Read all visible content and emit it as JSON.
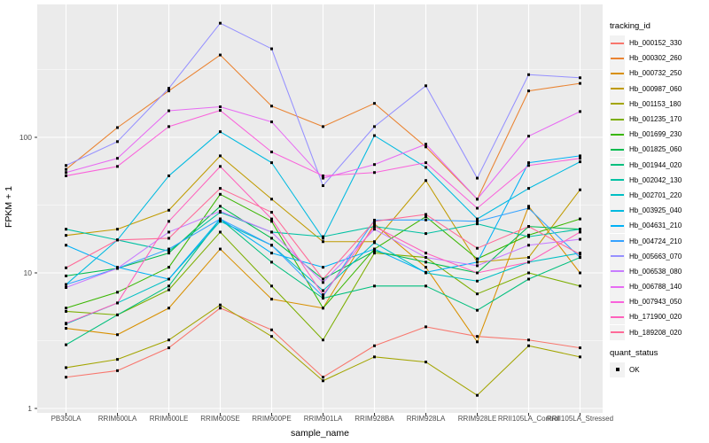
{
  "chart_data": {
    "type": "line",
    "title": "",
    "xlabel": "sample_name",
    "ylabel": "FPKM + 1",
    "y_scale": "log10",
    "ylim": [
      1,
      1000
    ],
    "y_ticks": [
      1,
      10,
      100
    ],
    "y_minor_ticks": [
      3.1623,
      31.623,
      316.23
    ],
    "grid": "on",
    "legend_position": "right",
    "legend_title": "tracking_id",
    "point_legend": {
      "title": "quant_status",
      "items": [
        {
          "label": "OK",
          "marker": "filled-black-square"
        }
      ]
    },
    "style": {
      "panel_bg": "#EBEBEB",
      "grid_color": "#FFFFFF",
      "point_color": "#000000",
      "tick_color": "#333333",
      "tick_label_color": "#4D4D4D"
    },
    "categories": [
      "PB350LA",
      "RRIM600LA",
      "RRIM600LE",
      "RRIM600SE",
      "RRIM600PE",
      "RRIM901LA",
      "RRIM928BA",
      "RRIM928LA",
      "RRIM928LE",
      "RRII105LA_Control",
      "RRII105LA_Stressed"
    ],
    "series": [
      {
        "name": "Hb_000152_330",
        "color": "#F8766D",
        "values": [
          1.7,
          1.9,
          2.8,
          5.5,
          3.8,
          1.7,
          2.9,
          4.0,
          3.4,
          3.2,
          2.8
        ]
      },
      {
        "name": "Hb_000302_260",
        "color": "#EA8331",
        "values": [
          58,
          118,
          220,
          405,
          170,
          120,
          178,
          85,
          35,
          220,
          250
        ]
      },
      {
        "name": "Hb_000732_250",
        "color": "#D89000",
        "values": [
          3.9,
          3.5,
          5.5,
          15,
          6.4,
          5.5,
          23,
          11,
          3.1,
          31,
          10
        ]
      },
      {
        "name": "Hb_000987_060",
        "color": "#C09B00",
        "values": [
          18.9,
          21,
          29,
          73,
          35,
          17,
          17,
          48,
          12,
          13,
          41
        ]
      },
      {
        "name": "Hb_001153_180",
        "color": "#A3A500",
        "values": [
          2.0,
          2.3,
          3.2,
          5.8,
          3.4,
          1.6,
          2.4,
          2.2,
          1.25,
          2.9,
          2.4
        ]
      },
      {
        "name": "Hb_001235_170",
        "color": "#7CAE00",
        "values": [
          5.2,
          4.9,
          7.5,
          20,
          8.0,
          3.2,
          14,
          13,
          7.0,
          10,
          8.0
        ]
      },
      {
        "name": "Hb_001699_230",
        "color": "#39B600",
        "values": [
          5.5,
          7.2,
          11,
          38,
          24,
          5.5,
          15,
          26,
          12.7,
          19,
          25
        ]
      },
      {
        "name": "Hb_001825_060",
        "color": "#00BB4E",
        "values": [
          9.5,
          10.8,
          14,
          31,
          18,
          9.0,
          14.5,
          12,
          10,
          22,
          21
        ]
      },
      {
        "name": "Hb_001944_020",
        "color": "#00BF7D",
        "values": [
          2.95,
          4.9,
          8.0,
          25,
          12,
          6.5,
          8.0,
          8.0,
          5.3,
          9.0,
          13
        ]
      },
      {
        "name": "Hb_002042_130",
        "color": "#00C1A3",
        "values": [
          21,
          17.5,
          14.5,
          28,
          20,
          18.5,
          22,
          19.5,
          23,
          18.5,
          21
        ]
      },
      {
        "name": "Hb_002701_220",
        "color": "#00BFC4",
        "values": [
          4.2,
          6.0,
          9.0,
          24,
          16,
          7.4,
          16.7,
          10,
          8.7,
          12,
          14
        ]
      },
      {
        "name": "Hb_003925_040",
        "color": "#00BAE0",
        "values": [
          8.2,
          17.5,
          52,
          110,
          65,
          18,
          103,
          60,
          25,
          42,
          66
        ]
      },
      {
        "name": "Hb_004631_210",
        "color": "#00B0F6",
        "values": [
          16,
          11,
          9.0,
          25,
          14,
          11,
          15,
          10.1,
          12,
          65,
          73
        ]
      },
      {
        "name": "Hb_004724_210",
        "color": "#35A2FF",
        "values": [
          8.2,
          10.8,
          15,
          25,
          16,
          6.7,
          24.5,
          24.6,
          24,
          30,
          13
        ]
      },
      {
        "name": "Hb_005663_070",
        "color": "#9590FF",
        "values": [
          62,
          93,
          230,
          695,
          450,
          44,
          120,
          240,
          50,
          290,
          275
        ]
      },
      {
        "name": "Hb_006538_080",
        "color": "#C77CFF",
        "values": [
          7.8,
          10.8,
          20,
          28.5,
          20,
          8.5,
          21,
          13,
          11.3,
          16,
          17.7
        ]
      },
      {
        "name": "Hb_006788_140",
        "color": "#E76BF3",
        "values": [
          55,
          70,
          157,
          168,
          130,
          50,
          63,
          89,
          35,
          102,
          155
        ]
      },
      {
        "name": "Hb_007943_050",
        "color": "#FA62DB",
        "values": [
          52,
          61,
          120,
          158,
          78,
          52,
          55,
          65,
          30,
          62,
          70
        ]
      },
      {
        "name": "Hb_171900_020",
        "color": "#FF62BC",
        "values": [
          4.25,
          6.0,
          24,
          61,
          25,
          6.9,
          22,
          14,
          10,
          12,
          20
        ]
      },
      {
        "name": "Hb_189208_020",
        "color": "#FF6A98",
        "values": [
          10.9,
          17.5,
          18,
          42,
          28,
          9.0,
          24,
          27,
          15.2,
          22,
          13.7
        ]
      }
    ]
  }
}
